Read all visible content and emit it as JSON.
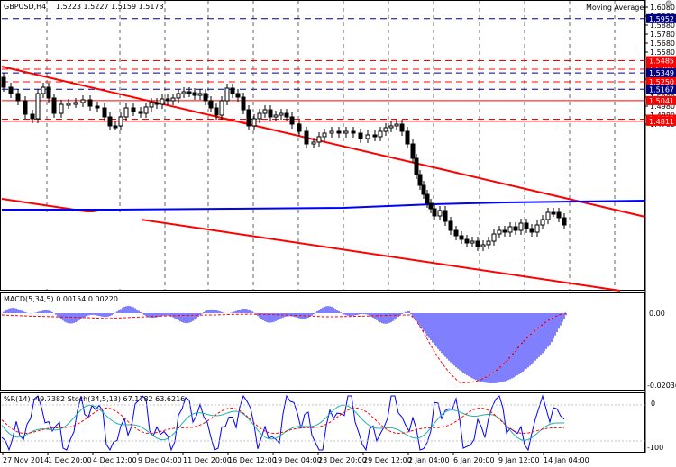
{
  "header": {
    "symbol": "GBPUSD,H4",
    "ohlc": "1.5223 1.5227 1.5159 1.5173",
    "indicator_label": "Moving Average"
  },
  "colors": {
    "background": "#ffffff",
    "grid": "#000000",
    "candle": "#000000",
    "channel": "#ff0000",
    "hline_red": "#ff0000",
    "hline_blue": "#000080",
    "ma_line": "#0000ff",
    "macd_hist": "#0000ff",
    "signal": "#ff0000",
    "label_red_bg": "#ff0000",
    "label_blue_bg": "#000080"
  },
  "price_axis": {
    "ticks": [
      "1.6080",
      "1.5980",
      "1.5880",
      "1.5780",
      "1.5680",
      "1.5580",
      "1.5280",
      "1.5080",
      "1.4980",
      "1.4880",
      "1.4780"
    ]
  },
  "level_labels": [
    {
      "text": "1.5952",
      "color": "blue",
      "style": "dashed"
    },
    {
      "text": "1.5485",
      "color": "red",
      "style": "dashed"
    },
    {
      "text": "1.5390",
      "color": "red",
      "style": "dashed"
    },
    {
      "text": "1.5349",
      "color": "blue",
      "style": "dashed"
    },
    {
      "text": "1.5250",
      "color": "red",
      "style": "dashed"
    },
    {
      "text": "1.5167",
      "color": "blue",
      "style": "dashed"
    },
    {
      "text": "1.5041",
      "color": "red",
      "style": "solid"
    },
    {
      "text": "1.4835",
      "color": "red",
      "style": "dashed"
    },
    {
      "text": "1.4811",
      "color": "red",
      "style": "solid"
    }
  ],
  "macd": {
    "label": "MACD(5,34,5) 0.00154 0.00220",
    "axis": [
      "0.00",
      "-0.02036"
    ]
  },
  "oscillators": {
    "label": "%R(14) -49.7382  Stoch(34,5,13) 67.1782 63.6216",
    "axis": [
      "0",
      "-100"
    ]
  },
  "time_axis": {
    "labels": [
      "27 Nov 2014",
      "1 Dec 20:00",
      "4 Dec 12:00",
      "9 Dec 04:00",
      "11 Dec 20:00",
      "16 Dec 12:00",
      "19 Dec 04:00",
      "23 Dec 20:00",
      "29 Dec 12:00",
      "2 Jan 04:00",
      "6 Jan 20:00",
      "9 Jan 12:00",
      "14 Jan 04:00"
    ]
  }
}
